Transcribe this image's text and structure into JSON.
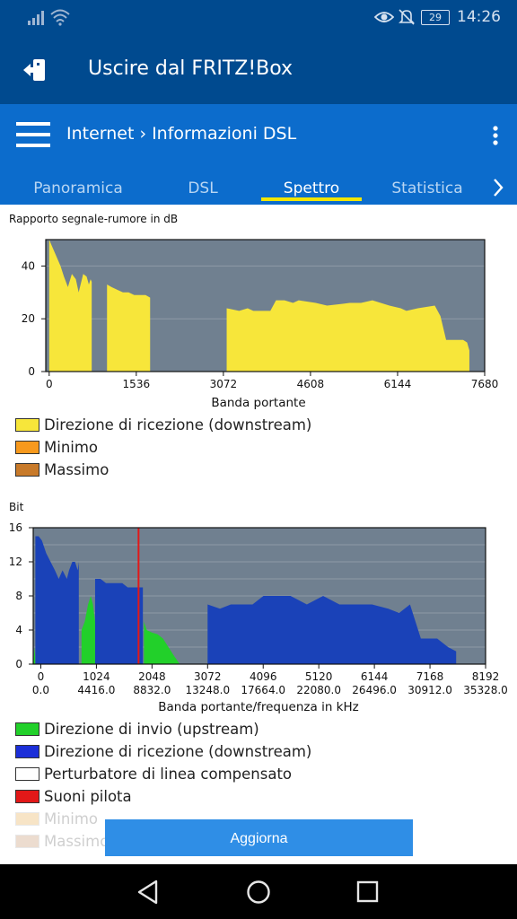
{
  "status_bar": {
    "battery": "29",
    "time": "14:26",
    "icons": [
      "signal-icon",
      "wifi-icon",
      "eye-icon",
      "bell-off-icon",
      "battery-icon"
    ]
  },
  "app_header": {
    "title": "Uscire dal FRITZ!Box",
    "icon": "logout-icon"
  },
  "toolbar": {
    "breadcrumb_parent": "Internet",
    "breadcrumb_separator": "›",
    "breadcrumb_current": "Informazioni DSL",
    "tabs": [
      "Panoramica",
      "DSL",
      "Spettro",
      "Statistica"
    ],
    "active_tab": "Spettro"
  },
  "colors": {
    "header_bg": "#004a8f",
    "toolbar_bg": "#0c6ccc",
    "tab_indicator": "#f2e600",
    "plot_bg": "#708090",
    "button_bg": "#2f8ee6"
  },
  "chart_data": [
    {
      "type": "area",
      "title": "Rapporto segnale-rumore in dB",
      "xlabel": "Banda portante",
      "ylabel": "",
      "xlim": [
        -60,
        7680
      ],
      "ylim": [
        0,
        50
      ],
      "xticks": [
        0,
        1536,
        3072,
        4608,
        6144,
        7680
      ],
      "yticks": [
        0,
        20,
        40
      ],
      "grid": true,
      "legend": [
        "Direzione di ricezione (downstream)",
        "Minimo",
        "Massimo"
      ],
      "series": [
        {
          "name": "Direzione di ricezione (downstream)",
          "color": "#f7e63a",
          "segments": [
            {
              "x": [
                0,
                60,
                120,
                200,
                260,
                330,
                400,
                470,
                520,
                600,
                660,
                700,
                730,
                750
              ],
              "y": [
                50,
                47,
                44,
                40,
                36,
                32,
                37,
                35,
                30,
                37,
                36,
                33,
                35,
                34
              ]
            },
            {
              "x": [
                1020,
                1100,
                1200,
                1300,
                1400,
                1500,
                1600,
                1700,
                1780
              ],
              "y": [
                33,
                32,
                31,
                30,
                30,
                29,
                29,
                29,
                28
              ]
            },
            {
              "x": [
                3130,
                3350,
                3500,
                3600,
                3900,
                4000,
                4150,
                4300,
                4400,
                4700,
                4900,
                5300,
                5500,
                5700,
                6000,
                6200,
                6300,
                6500,
                6800,
                6900,
                7000,
                7300,
                7370,
                7410
              ],
              "y": [
                24,
                23,
                24,
                23,
                23,
                27,
                27,
                26,
                27,
                26,
                25,
                26,
                26,
                27,
                25,
                24,
                23,
                24,
                25,
                21,
                12,
                12,
                11,
                8
              ]
            }
          ]
        }
      ]
    },
    {
      "type": "area",
      "title": "Bit",
      "xlabel": "Banda portante/frequenza in kHz",
      "ylabel": "",
      "xlim": [
        -140,
        8192
      ],
      "ylim": [
        0,
        16
      ],
      "xticks": [
        0,
        1024,
        2048,
        3072,
        4096,
        5120,
        6144,
        7168,
        8192
      ],
      "xticks_khz": [
        "0.0",
        "4416.0",
        "8832.0",
        "13248.0",
        "17664.0",
        "22080.0",
        "26496.0",
        "30912.0",
        "35328.0"
      ],
      "yticks": [
        0,
        4,
        8,
        12,
        16
      ],
      "grid": true,
      "pilot_tone": 1800,
      "legend": [
        "Direzione di invio (upstream)",
        "Direzione di ricezione (downstream)",
        "Perturbatore di linea compensato",
        "Suoni pilota",
        "Minimo",
        "Massimo"
      ],
      "series": [
        {
          "name": "Direzione di invio (upstream)",
          "color": "#22d02a",
          "segments": [
            {
              "x": [
                -140,
                -110,
                -100
              ],
              "y": [
                0,
                2,
                0
              ]
            },
            {
              "x": [
                750,
                810,
                870,
                920,
                960,
                1000,
                1050
              ],
              "y": [
                4,
                5,
                7,
                8,
                7,
                5,
                3
              ]
            },
            {
              "x": [
                1900,
                1950,
                2050,
                2150,
                2250,
                2350,
                2450,
                2560
              ],
              "y": [
                5,
                4,
                3.7,
                3.5,
                3,
                2,
                1,
                0
              ]
            }
          ]
        },
        {
          "name": "Direzione di ricezione (downstream)",
          "color": "#1a42b8",
          "segments": [
            {
              "x": [
                -100,
                -40,
                20,
                100,
                180,
                260,
                330,
                400,
                480,
                520,
                580,
                630,
                680,
                700
              ],
              "y": [
                15,
                15,
                14.5,
                13,
                12,
                11,
                10,
                11,
                10,
                11,
                12,
                12,
                11,
                12
              ]
            },
            {
              "x": [
                1000,
                1100,
                1200,
                1300,
                1400,
                1500,
                1600,
                1700,
                1800,
                1850,
                1880
              ],
              "y": [
                10,
                10,
                9.5,
                9.5,
                9.5,
                9.5,
                9,
                9,
                9,
                9,
                9
              ]
            },
            {
              "x": [
                3072,
                3300,
                3500,
                3700,
                3900,
                4100,
                4300,
                4600,
                4900,
                5200,
                5500,
                5800,
                6100,
                6400,
                6600,
                6800,
                7000,
                7100,
                7300,
                7500,
                7650
              ],
              "y": [
                7,
                6.5,
                7,
                7,
                7,
                8,
                8,
                8,
                7,
                8,
                7,
                7,
                7,
                6.5,
                6,
                7,
                3,
                3,
                3,
                2,
                1.5
              ]
            }
          ]
        }
      ]
    }
  ],
  "charts": {
    "snr": {
      "title": "Rapporto segnale-rumore in dB",
      "xlabel": "Banda portante",
      "legend": [
        {
          "label": "Direzione di ricezione (downstream)",
          "color": "#f7e63a"
        },
        {
          "label": "Minimo",
          "color": "#f7991d"
        },
        {
          "label": "Massimo",
          "color": "#c87a2a"
        }
      ]
    },
    "bits": {
      "title": "Bit",
      "xlabel": "Banda portante/frequenza in kHz",
      "legend": [
        {
          "label": "Direzione di invio (upstream)",
          "color": "#22d02a"
        },
        {
          "label": "Direzione di ricezione (downstream)",
          "color": "#1c2fd8"
        },
        {
          "label": "Perturbatore di linea compensato",
          "color": "#ffffff"
        },
        {
          "label": "Suoni pilota",
          "color": "#e21818"
        },
        {
          "label": "Minimo",
          "color": "#f7e4c6"
        },
        {
          "label": "Massimo",
          "color": "#ecdccf"
        }
      ]
    }
  },
  "refresh_button": {
    "label": "Aggiorna"
  },
  "nav_bar": {
    "icons": [
      "back-icon",
      "home-icon",
      "recents-icon"
    ]
  }
}
